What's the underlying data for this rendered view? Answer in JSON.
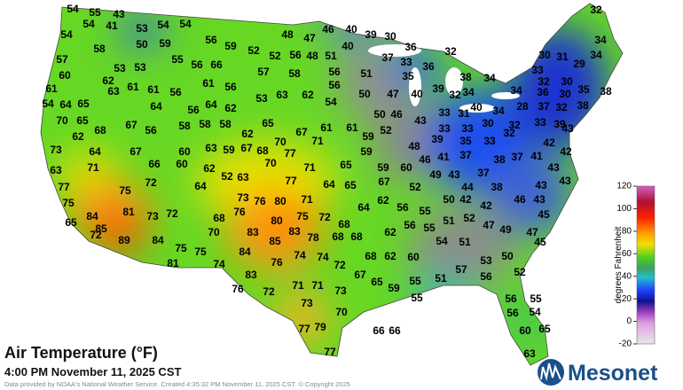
{
  "header": {
    "title": "Air Temperature (°F)",
    "subtitle": "4:00 PM November 11, 2025 CST",
    "credit": "Data provided by NOAA's National Weather Service. Created 4:35:32 PM November 11, 2025 CST. © Copyright 2025",
    "logo": "Mesonet"
  },
  "colorbar": {
    "label": "degrees Fahrenheit",
    "ticks": [
      120,
      100,
      80,
      60,
      40,
      20,
      0,
      -20
    ]
  },
  "stations": [
    54,
    55,
    43,
    54,
    41,
    53,
    54,
    54,
    54,
    59,
    50,
    56,
    48,
    47,
    46,
    40,
    39,
    30,
    40,
    58,
    57,
    53,
    53,
    55,
    56,
    66,
    59,
    52,
    56,
    48,
    51,
    52,
    57,
    58,
    56,
    51,
    37,
    36,
    33,
    32,
    36,
    35,
    38,
    34,
    32,
    34,
    30,
    31,
    34,
    29,
    33,
    32,
    30,
    35,
    38,
    34,
    36,
    30,
    38,
    60,
    61,
    62,
    61,
    61,
    56,
    61,
    56,
    53,
    63,
    62,
    56,
    54,
    50,
    47,
    40,
    39,
    32,
    34,
    40,
    34,
    28,
    37,
    32,
    54,
    64,
    65,
    63,
    64,
    56,
    64,
    62,
    70,
    65,
    68,
    67,
    56,
    58,
    58,
    58,
    65,
    62,
    50,
    46,
    43,
    33,
    31,
    30,
    33,
    33,
    32,
    33,
    39,
    43,
    62,
    67,
    61,
    71,
    61,
    59,
    52,
    48,
    39,
    35,
    33,
    32,
    42,
    42,
    41,
    73,
    64,
    71,
    67,
    60,
    63,
    59,
    67,
    68,
    70,
    77,
    70,
    71,
    65,
    59,
    59,
    60,
    46,
    41,
    37,
    38,
    37,
    43,
    63,
    66,
    60,
    62,
    52,
    63,
    49,
    43,
    37,
    43,
    77,
    75,
    72,
    64,
    77,
    73,
    76,
    80,
    71,
    64,
    65,
    67,
    52,
    44,
    38,
    43,
    75,
    84,
    81,
    73,
    72,
    68,
    76,
    80,
    75,
    72,
    64,
    62,
    56,
    55,
    50,
    42,
    42,
    46,
    43,
    45,
    65,
    85,
    72,
    89,
    84,
    70,
    83,
    78,
    68,
    68,
    68,
    62,
    56,
    55,
    51,
    52,
    47,
    49,
    47,
    75,
    75,
    85,
    83,
    84,
    74,
    74,
    68,
    62,
    60,
    54,
    51,
    50,
    53,
    45,
    81,
    74,
    76,
    72,
    57,
    52,
    83,
    67,
    51,
    55,
    56,
    76,
    72,
    71,
    71,
    73,
    65,
    59,
    55,
    73,
    56,
    55,
    56,
    54,
    70,
    77,
    79,
    66,
    66,
    60,
    65,
    77,
    63
  ]
}
